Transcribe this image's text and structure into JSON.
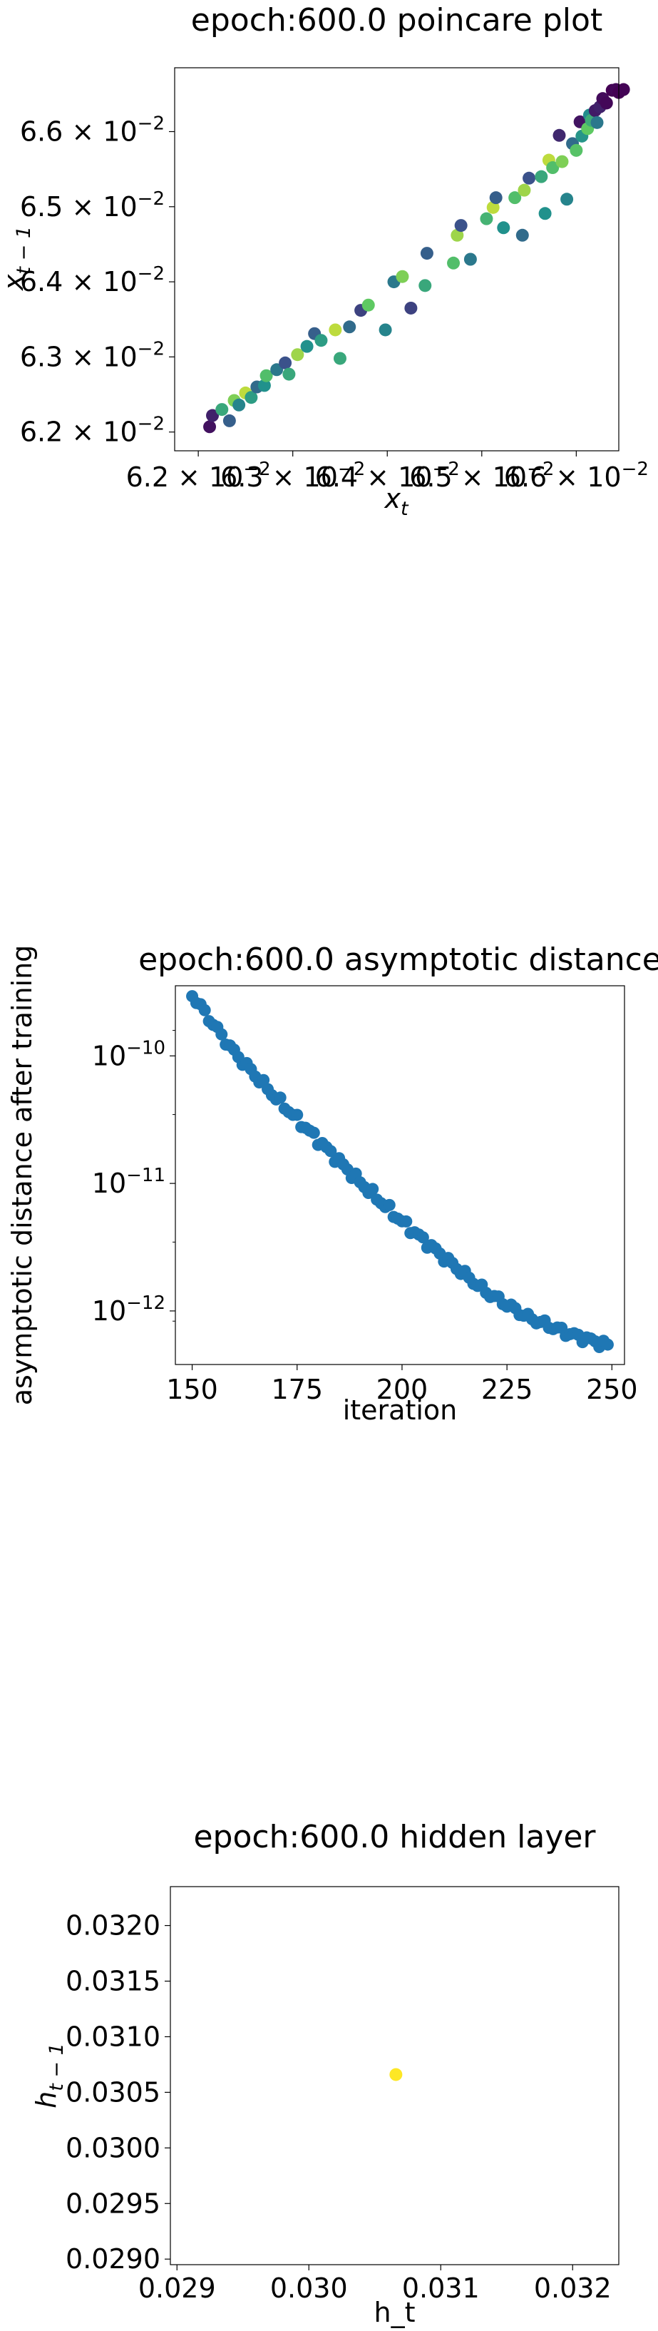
{
  "charts": [
    {
      "chart_data": {
        "type": "scatter",
        "title": "epoch:600.0 poincare plot",
        "xlabel": "x_t",
        "ylabel": "x_{t-1}",
        "xlim": [
          0.06175,
          0.06645
        ],
        "ylim": [
          0.06175,
          0.06685
        ],
        "xticks": [
          {
            "v": 0.062,
            "base": "6.2 × 10",
            "exp": "−2"
          },
          {
            "v": 0.063,
            "base": "6.3 × 10",
            "exp": "−2"
          },
          {
            "v": 0.064,
            "base": "6.4 × 10",
            "exp": "−2"
          },
          {
            "v": 0.065,
            "base": "6.5 × 10",
            "exp": "−2"
          },
          {
            "v": 0.066,
            "base": "6.6 × 10",
            "exp": "−2"
          }
        ],
        "yticks": [
          {
            "v": 0.062,
            "base": "6.2 × 10",
            "exp": "−2"
          },
          {
            "v": 0.063,
            "base": "6.3 × 10",
            "exp": "−2"
          },
          {
            "v": 0.064,
            "base": "6.4 × 10",
            "exp": "−2"
          },
          {
            "v": 0.065,
            "base": "6.5 × 10",
            "exp": "−2"
          },
          {
            "v": 0.066,
            "base": "6.6 × 10",
            "exp": "−2"
          }
        ],
        "colormap": "viridis",
        "points": [
          [
            0.06212,
            0.06207,
            0.05
          ],
          [
            0.06215,
            0.06222,
            0.1
          ],
          [
            0.06225,
            0.0623,
            0.6
          ],
          [
            0.06233,
            0.06215,
            0.3
          ],
          [
            0.06238,
            0.06242,
            0.8
          ],
          [
            0.06243,
            0.06236,
            0.45
          ],
          [
            0.0625,
            0.06252,
            0.9
          ],
          [
            0.06256,
            0.06246,
            0.55
          ],
          [
            0.06262,
            0.0626,
            0.35
          ],
          [
            0.0627,
            0.06262,
            0.5
          ],
          [
            0.06272,
            0.06275,
            0.7
          ],
          [
            0.06283,
            0.06283,
            0.4
          ],
          [
            0.06292,
            0.06292,
            0.25
          ],
          [
            0.06296,
            0.06277,
            0.6
          ],
          [
            0.06305,
            0.06303,
            0.85
          ],
          [
            0.06315,
            0.06314,
            0.5
          ],
          [
            0.06323,
            0.06331,
            0.3
          ],
          [
            0.0633,
            0.06322,
            0.55
          ],
          [
            0.06345,
            0.06336,
            0.9
          ],
          [
            0.0635,
            0.06298,
            0.6
          ],
          [
            0.0636,
            0.0634,
            0.35
          ],
          [
            0.06372,
            0.06362,
            0.2
          ],
          [
            0.0638,
            0.06369,
            0.75
          ],
          [
            0.06398,
            0.06336,
            0.45
          ],
          [
            0.06407,
            0.064,
            0.4
          ],
          [
            0.06416,
            0.06407,
            0.8
          ],
          [
            0.06425,
            0.06365,
            0.2
          ],
          [
            0.0644,
            0.06395,
            0.6
          ],
          [
            0.06442,
            0.06438,
            0.3
          ],
          [
            0.0647,
            0.06425,
            0.7
          ],
          [
            0.06474,
            0.06462,
            0.85
          ],
          [
            0.06478,
            0.06475,
            0.25
          ],
          [
            0.06488,
            0.0643,
            0.4
          ],
          [
            0.06505,
            0.06484,
            0.65
          ],
          [
            0.06512,
            0.06499,
            0.9
          ],
          [
            0.06515,
            0.06512,
            0.3
          ],
          [
            0.06523,
            0.06472,
            0.5
          ],
          [
            0.06535,
            0.06512,
            0.7
          ],
          [
            0.06543,
            0.06462,
            0.35
          ],
          [
            0.06545,
            0.06522,
            0.85
          ],
          [
            0.0655,
            0.06538,
            0.25
          ],
          [
            0.06563,
            0.0654,
            0.6
          ],
          [
            0.06567,
            0.06491,
            0.5
          ],
          [
            0.06571,
            0.06562,
            0.9
          ],
          [
            0.06575,
            0.06552,
            0.7
          ],
          [
            0.06582,
            0.06595,
            0.12
          ],
          [
            0.06585,
            0.0656,
            0.8
          ],
          [
            0.0659,
            0.0651,
            0.45
          ],
          [
            0.06596,
            0.06584,
            0.35
          ],
          [
            0.066,
            0.06575,
            0.72
          ],
          [
            0.06604,
            0.06613,
            0.06
          ],
          [
            0.06606,
            0.06594,
            0.52
          ],
          [
            0.06612,
            0.06604,
            0.75
          ],
          [
            0.06614,
            0.06622,
            0.48
          ],
          [
            0.06616,
            0.06615,
            0.62
          ],
          [
            0.0662,
            0.06628,
            0.08
          ],
          [
            0.06622,
            0.06612,
            0.4
          ],
          [
            0.06625,
            0.06633,
            0.1
          ],
          [
            0.06628,
            0.06644,
            0.03
          ],
          [
            0.06632,
            0.06638,
            0.02
          ],
          [
            0.06638,
            0.06655,
            0.0
          ],
          [
            0.06642,
            0.06656,
            0.02
          ],
          [
            0.06645,
            0.06652,
            0.0
          ],
          [
            0.0665,
            0.06656,
            0.01
          ]
        ]
      }
    },
    {
      "chart_data": {
        "type": "scatter",
        "title": "epoch:600.0 asymptotic distance",
        "xlabel": "iteration",
        "ylabel": "asymptotic distance after training",
        "xlim": [
          146,
          253
        ],
        "ylim_log10": [
          -12.42,
          -9.45
        ],
        "xticks": [
          150,
          175,
          200,
          225,
          250
        ],
        "yticks": [
          {
            "exp10": -10,
            "base": "10",
            "exp": "−10"
          },
          {
            "exp10": -11,
            "base": "10",
            "exp": "−11"
          },
          {
            "exp10": -12,
            "base": "10",
            "exp": "−12"
          }
        ],
        "color": "#1f77b4",
        "x_start": 150,
        "x_end": 249,
        "log10_anchors": [
          [
            150,
            -9.52
          ],
          [
            155,
            -9.75
          ],
          [
            160,
            -9.97
          ],
          [
            170,
            -10.33
          ],
          [
            180,
            -10.66
          ],
          [
            190,
            -10.99
          ],
          [
            200,
            -11.3
          ],
          [
            210,
            -11.58
          ],
          [
            220,
            -11.85
          ],
          [
            230,
            -12.05
          ],
          [
            240,
            -12.18
          ],
          [
            249,
            -12.27
          ]
        ]
      }
    },
    {
      "chart_data": {
        "type": "scatter",
        "title": "epoch:600.0 hidden layer",
        "xlabel": "h_t",
        "ylabel": "h_{t-1}",
        "xlim": [
          0.02895,
          0.03235
        ],
        "ylim": [
          0.02895,
          0.03235
        ],
        "xticks": [
          "0.029",
          "0.030",
          "0.031",
          "0.032"
        ],
        "yticks": [
          "0.0290",
          "0.0295",
          "0.0300",
          "0.0305",
          "0.0310",
          "0.0315",
          "0.0320"
        ],
        "points": [
          [
            0.03066,
            0.03066
          ]
        ],
        "color": "#fde725"
      }
    }
  ]
}
